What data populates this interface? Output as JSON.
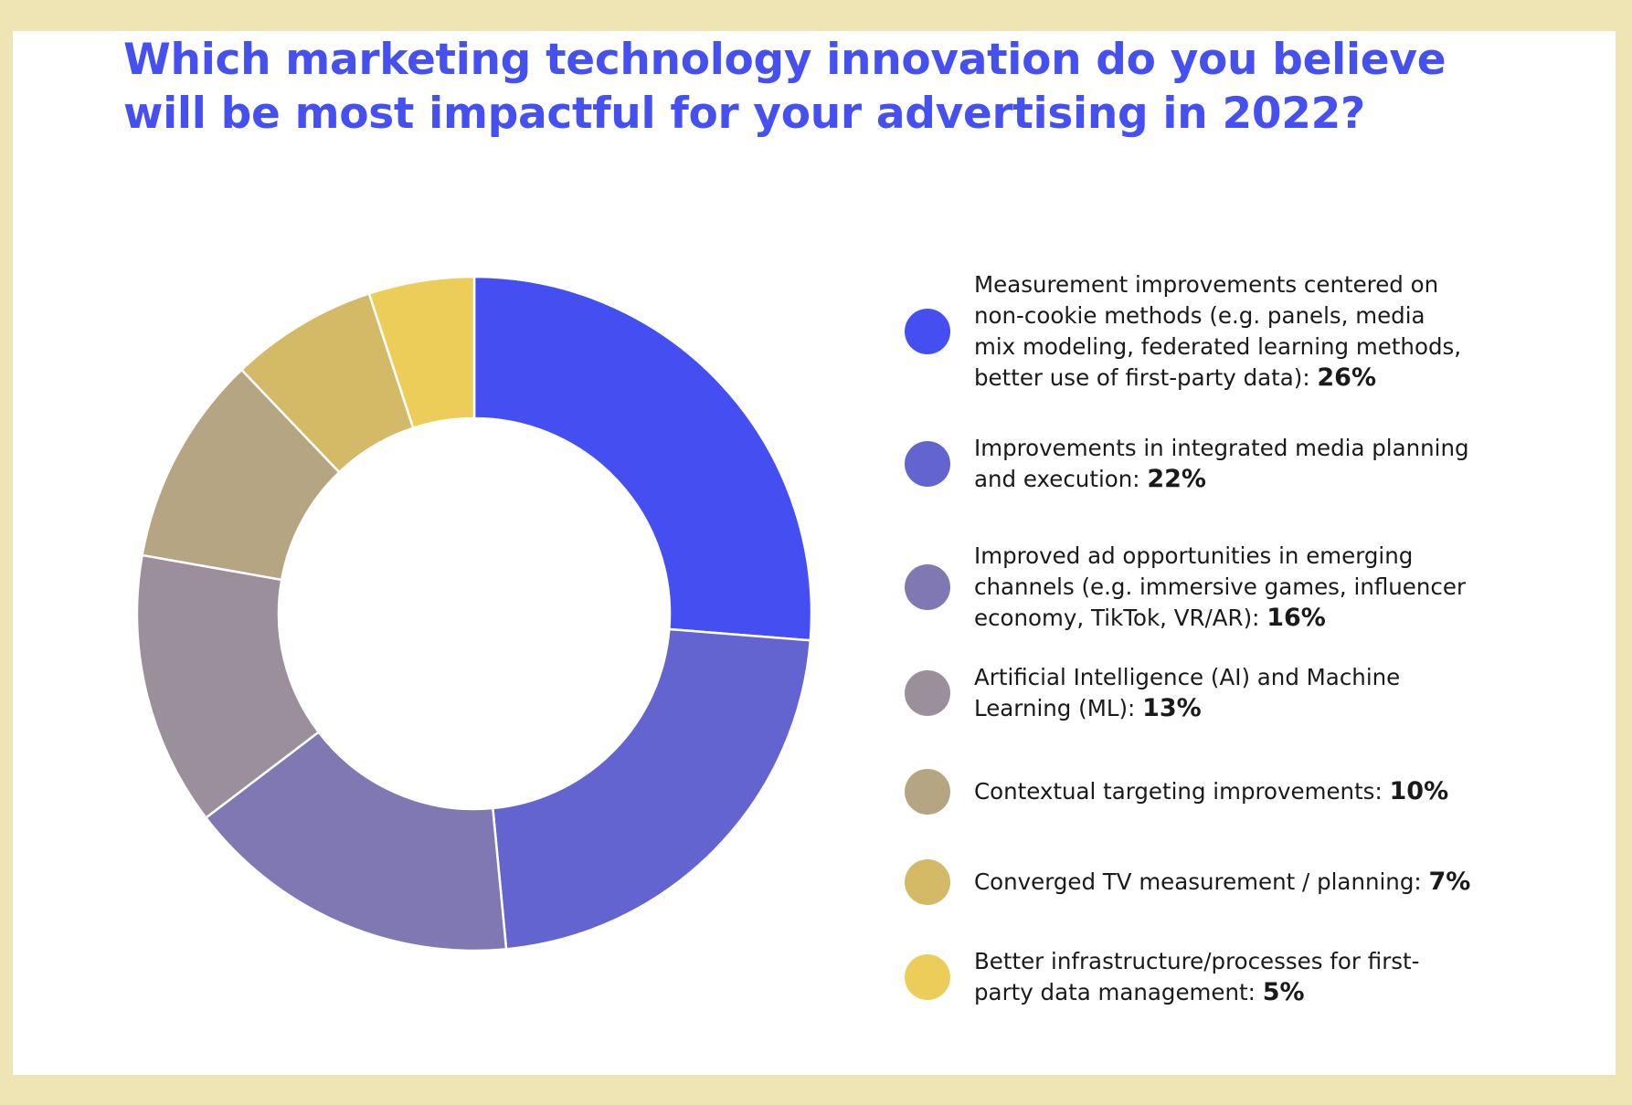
{
  "title_lines": [
    "Which marketing technology innovation do you believe",
    "will be most impactful for your advertising in 2022?"
  ],
  "chart_data": {
    "type": "pie",
    "variant": "donut",
    "title": "Which marketing technology innovation do you believe will be most impactful for your advertising in 2022?",
    "legend_position": "right",
    "unit": "%",
    "categories": [
      "Measurement improvements centered on non-cookie methods (e.g. panels, media mix modeling, federated learning methods, better use of first-party data)",
      "Improvements in integrated media planning and execution",
      "Improved ad opportunities in emerging channels (e.g. immersive games, influencer economy, TikTok, VR/AR)",
      "Artificial Intelligence (AI) and Machine Learning (ML)",
      "Contextual targeting improvements",
      "Converged TV measurement / planning",
      "Better infrastructure/processes for first-party data management"
    ],
    "values": [
      26,
      22,
      16,
      13,
      10,
      7,
      5
    ],
    "value_labels": [
      "26%",
      "22%",
      "16%",
      "13%",
      "10%",
      "7%",
      "5%"
    ],
    "colors": [
      "#454ef0",
      "#6464d0",
      "#7f78b3",
      "#9b8f9b",
      "#b5a583",
      "#d4ba67",
      "#edcd5a"
    ]
  },
  "legend": [
    {
      "lines": [
        "Measurement improvements centered on",
        "non-cookie methods (e.g. panels, media",
        "mix modeling, federated learning methods,",
        "better use of first-party data):"
      ],
      "value": "26%"
    },
    {
      "lines": [
        "Improvements in integrated media planning",
        "and execution:"
      ],
      "value": "22%"
    },
    {
      "lines": [
        "Improved ad opportunities in emerging",
        "channels (e.g. immersive games, influencer",
        "economy, TikTok, VR/AR):"
      ],
      "value": "16%"
    },
    {
      "lines": [
        "Artificial Intelligence (AI) and Machine",
        "Learning (ML):"
      ],
      "value": "13%"
    },
    {
      "lines": [
        "Contextual targeting improvements:"
      ],
      "value": "10%"
    },
    {
      "lines": [
        "Converged TV measurement / planning:"
      ],
      "value": "7%"
    },
    {
      "lines": [
        "Better infrastructure/processes for first-",
        "party data management:"
      ],
      "value": "5%"
    }
  ]
}
